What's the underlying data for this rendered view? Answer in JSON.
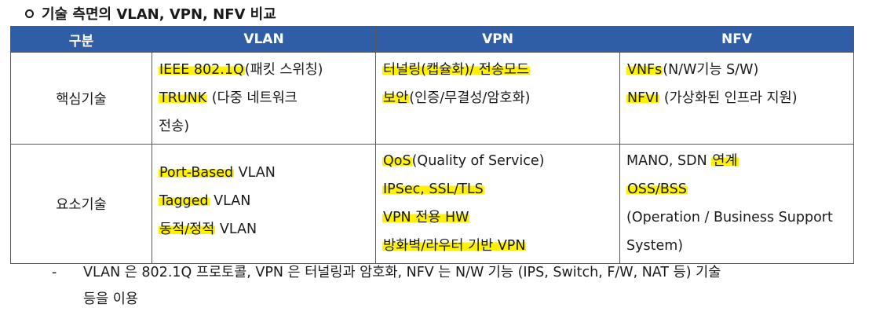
{
  "heading": "기술 측면의 VLAN, VPN, NFV 비교",
  "table": {
    "headers": [
      "구분",
      "VLAN",
      "VPN",
      "NFV"
    ],
    "rows": [
      {
        "category": "핵심기술",
        "vlan": [
          {
            "hl": "IEEE 802.1Q",
            "rest": "(패킷 스위칭)"
          },
          {
            "hl": "TRUNK",
            "rest": " (다중 네트워크"
          },
          {
            "hl": "",
            "rest": "전송)"
          }
        ],
        "vpn": [
          {
            "hl": "터널링(캡슐화)/ 전송모드",
            "rest": ""
          },
          {
            "hl": "보안",
            "rest": "(인증/무결성/암호화)"
          }
        ],
        "nfv": [
          {
            "hl": "VNFs",
            "rest": "(N/W기능 S/W)"
          },
          {
            "hl": "NFVI",
            "rest": " (가상화된 인프라 지원)"
          }
        ]
      },
      {
        "category": "요소기술",
        "vlan": [
          {
            "hl": "Port-Based",
            "rest": " VLAN"
          },
          {
            "hl": "Tagged",
            "rest": " VLAN"
          },
          {
            "hl": "동적/정적",
            "rest": " VLAN"
          }
        ],
        "vpn": [
          {
            "hl": "QoS",
            "rest": "(Quality of Service)"
          },
          {
            "hl": "IPSec, SSL/TLS",
            "rest": ""
          },
          {
            "hl": "VPN 전용 HW",
            "rest": ""
          },
          {
            "hl": "방화벽/라우터 기반 VPN",
            "rest": ""
          }
        ],
        "nfv": [
          {
            "pre": "MANO, SDN ",
            "hl": "연계",
            "rest": ""
          },
          {
            "hl": "OSS/BSS",
            "rest": ""
          },
          {
            "hl": "",
            "rest": "(Operation / Business Support"
          },
          {
            "hl": "",
            "rest": "System)"
          }
        ]
      }
    ]
  },
  "note": {
    "dash": "-",
    "line1": "VLAN 은 802.1Q 프로토콜, VPN 은 터널링과 암호화, NFV 는 N/W 기능 (IPS, Switch, F/W, NAT 등) 기술",
    "line2": "등을 이용"
  },
  "colors": {
    "header_bg": "#2f5ea6",
    "highlight": "#fff200"
  }
}
